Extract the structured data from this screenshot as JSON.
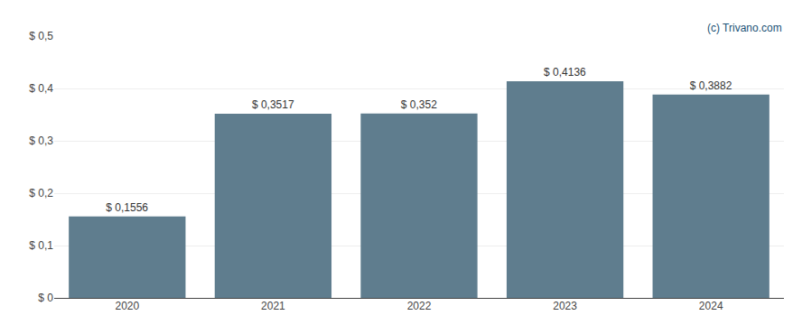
{
  "chart_data": {
    "type": "bar",
    "categories": [
      "2020",
      "2021",
      "2022",
      "2023",
      "2024"
    ],
    "values": [
      0.1556,
      0.3517,
      0.352,
      0.4136,
      0.3882
    ],
    "value_labels": [
      "$ 0,1556",
      "$ 0,3517",
      "$ 0,352",
      "$ 0,4136",
      "$ 0,3882"
    ],
    "data_labels": true,
    "color": "#5f7d8e",
    "ylim": [
      0,
      0.5
    ],
    "yticks": [
      {
        "value": 0,
        "label": "$ 0"
      },
      {
        "value": 0.1,
        "label": "$ 0,1"
      },
      {
        "value": 0.2,
        "label": "$ 0,2"
      },
      {
        "value": 0.3,
        "label": "$ 0,3"
      },
      {
        "value": 0.4,
        "label": "$ 0,4"
      },
      {
        "value": 0.5,
        "label": "$ 0,5"
      }
    ],
    "grid": true,
    "annotations": [
      {
        "text": "(c) Trivano.com",
        "color": "#1a5276"
      }
    ]
  }
}
